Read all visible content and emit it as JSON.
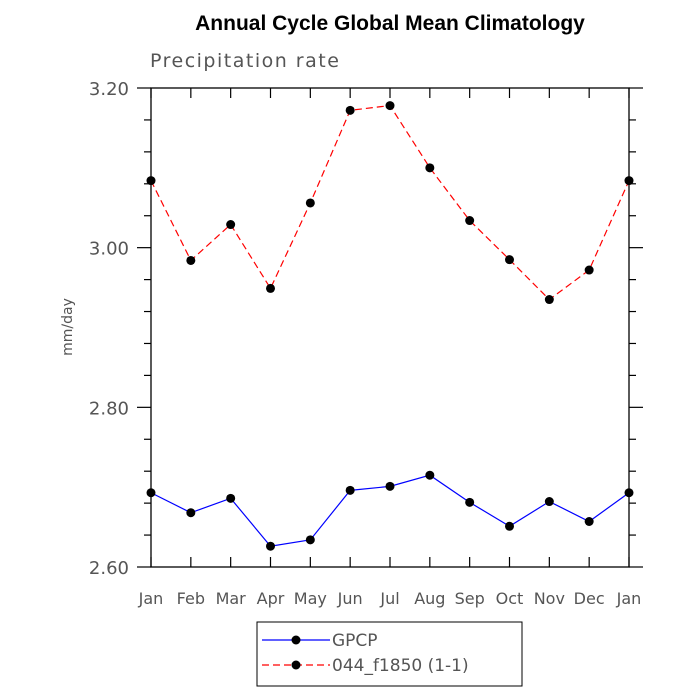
{
  "chart_data": {
    "type": "line",
    "title": "Annual Cycle Global Mean Climatology",
    "subtitle": "Precipitation rate",
    "ylabel": "mm/day",
    "xlabel": "",
    "categories": [
      "Jan",
      "Feb",
      "Mar",
      "Apr",
      "May",
      "Jun",
      "Jul",
      "Aug",
      "Sep",
      "Oct",
      "Nov",
      "Dec",
      "Jan"
    ],
    "ylim": [
      2.6,
      3.2
    ],
    "yticks": [
      "2.60",
      "2.80",
      "3.00",
      "3.20"
    ],
    "series": [
      {
        "name": "GPCP",
        "color": "#0000ff",
        "dash": "solid",
        "values": [
          2.693,
          2.668,
          2.686,
          2.626,
          2.634,
          2.696,
          2.701,
          2.715,
          2.681,
          2.651,
          2.682,
          2.657,
          2.693
        ]
      },
      {
        "name": "044_f1850 (1-1)",
        "color": "#ff0000",
        "dash": "dashed",
        "values": [
          3.084,
          2.984,
          3.029,
          2.949,
          3.056,
          3.172,
          3.178,
          3.1,
          3.034,
          2.985,
          2.935,
          2.972,
          3.084
        ]
      }
    ],
    "legend_position": "bottom"
  }
}
